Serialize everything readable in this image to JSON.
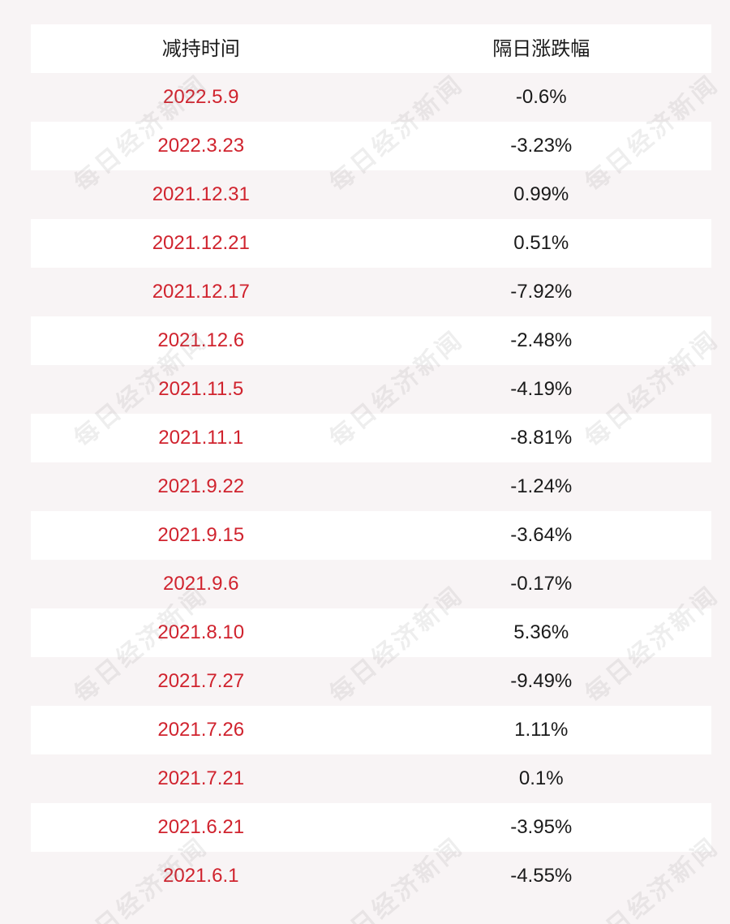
{
  "table": {
    "headers": {
      "date": "减持时间",
      "change": "隔日涨跌幅"
    },
    "rows": [
      {
        "date": "2022.5.9",
        "change": "-0.6%"
      },
      {
        "date": "2022.3.23",
        "change": "-3.23%"
      },
      {
        "date": "2021.12.31",
        "change": "0.99%"
      },
      {
        "date": "2021.12.21",
        "change": "0.51%"
      },
      {
        "date": "2021.12.17",
        "change": "-7.92%"
      },
      {
        "date": "2021.12.6",
        "change": "-2.48%"
      },
      {
        "date": "2021.11.5",
        "change": "-4.19%"
      },
      {
        "date": "2021.11.1",
        "change": "-8.81%"
      },
      {
        "date": "2021.9.22",
        "change": "-1.24%"
      },
      {
        "date": "2021.9.15",
        "change": "-3.64%"
      },
      {
        "date": "2021.9.6",
        "change": "-0.17%"
      },
      {
        "date": "2021.8.10",
        "change": "5.36%"
      },
      {
        "date": "2021.7.27",
        "change": "-9.49%"
      },
      {
        "date": "2021.7.26",
        "change": "1.11%"
      },
      {
        "date": "2021.7.21",
        "change": "0.1%"
      },
      {
        "date": "2021.6.21",
        "change": "-3.95%"
      },
      {
        "date": "2021.6.1",
        "change": "-4.55%"
      }
    ]
  },
  "watermark": {
    "text": "每日经济新闻"
  },
  "colors": {
    "date_text": "#d0232e",
    "change_text": "#1a1a1a",
    "background": "#f8f4f5",
    "row_alt": "#ffffff"
  }
}
